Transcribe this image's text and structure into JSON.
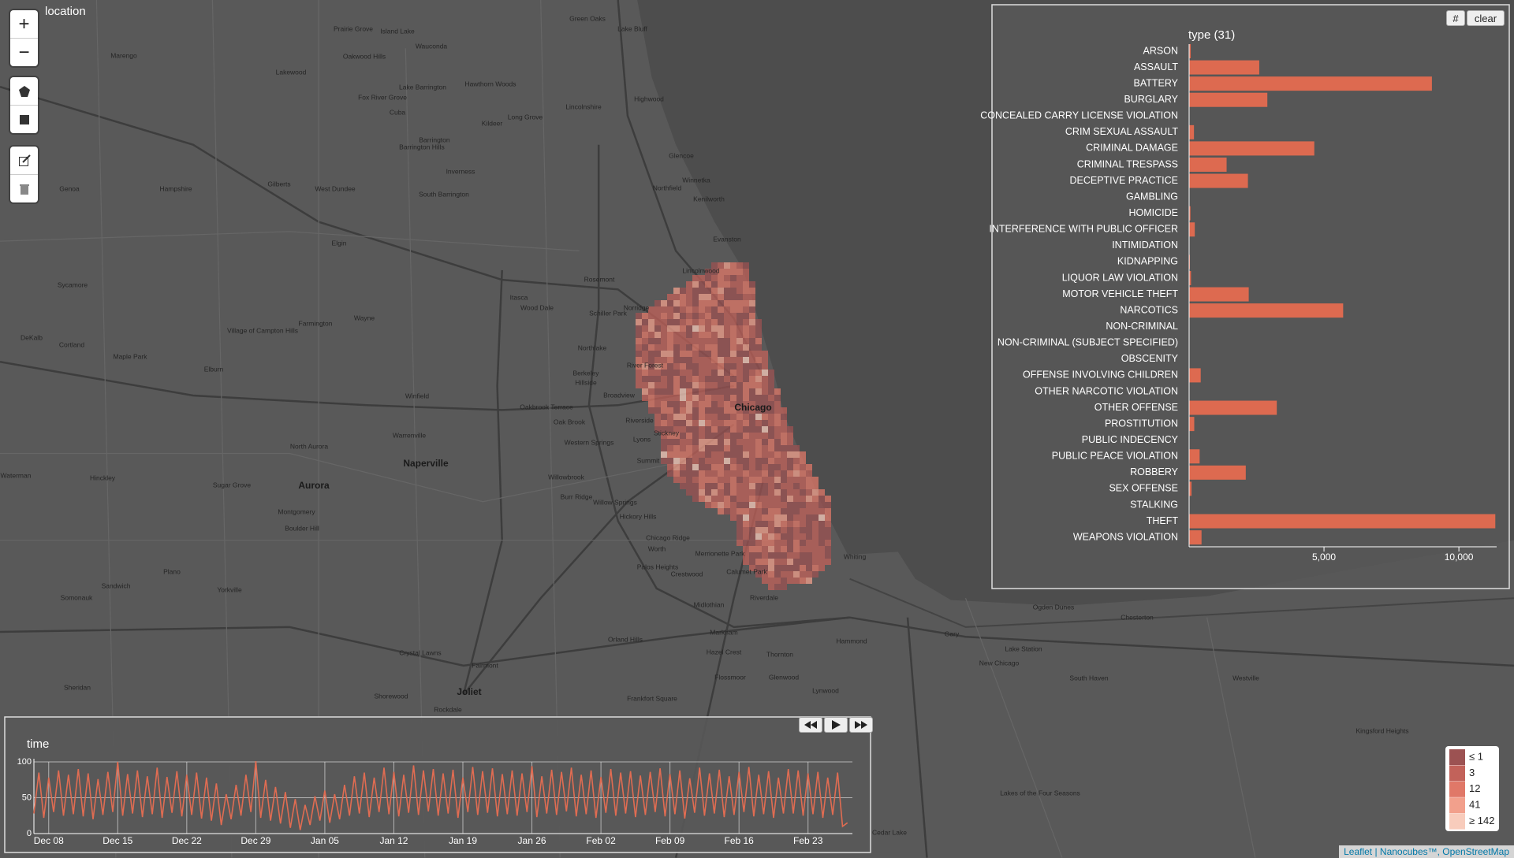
{
  "map": {
    "title": "location",
    "zoom_in": "+",
    "zoom_out": "−",
    "place_labels": [
      "Chicago",
      "Naperville",
      "Aurora",
      "Joliet",
      "Evanston",
      "Elgin",
      "Green Oaks",
      "Lake Bluff",
      "Highwood",
      "Glencoe",
      "Winnetka",
      "Northfield",
      "Kenilworth",
      "Lincolnwood",
      "Rosemont",
      "Norridge",
      "Schiller Park",
      "Wood Dale",
      "Itasca",
      "Northlake",
      "Berkeley",
      "Hillside",
      "River Forest",
      "Broadview",
      "Oakbrook Terrace",
      "Oak Brook",
      "Riverside",
      "Stickney",
      "Lyons",
      "Western Springs",
      "Summit",
      "Willowbrook",
      "Burr Ridge",
      "Willow Springs",
      "Hickory Hills",
      "Chicago Ridge",
      "Worth",
      "Merrionette Park",
      "Palos Heights",
      "Crestwood",
      "Calumet Park",
      "Riverdale",
      "Midlothian",
      "Markham",
      "Hazel Crest",
      "Thornton",
      "Flossmoor",
      "Glenwood",
      "Lynwood",
      "Hammond",
      "Whiting",
      "Gary",
      "Ogden Dunes",
      "Chesterton",
      "Lake Station",
      "New Chicago",
      "South Haven",
      "Westville",
      "Kingsford Heights",
      "Lakes of the Four Seasons",
      "Cedar Lake",
      "Orland Hills",
      "Frankfort Square",
      "Shorewood",
      "Rockdale",
      "Fairmont",
      "Crystal Lawns",
      "Plano",
      "Sandwich",
      "Yorkville",
      "Somonauk",
      "Sheridan",
      "Hinckley",
      "Waterman",
      "Sugar Grove",
      "Montgomery",
      "Boulder Hill",
      "North Aurora",
      "Warrenville",
      "Winfield",
      "Elburn",
      "Maple Park",
      "Cortland",
      "DeKalb",
      "Sycamore",
      "Village of Campton Hills",
      "Wayne",
      "Farmington",
      "Hampshire",
      "Gilberts",
      "West Dundee",
      "Genoa",
      "Marengo",
      "Lakewood",
      "Fox River Grove",
      "Cuba",
      "Barrington",
      "Barrington Hills",
      "Inverness",
      "South Barrington",
      "Lake Barrington",
      "Hawthorn Woods",
      "Kildeer",
      "Long Grove",
      "Lincolnshire",
      "Prairie Grove",
      "Island Lake",
      "Wauconda",
      "Oakwood Hills"
    ]
  },
  "type_panel": {
    "buttons": [
      "#",
      "clear"
    ],
    "chart_data": {
      "type": "bar",
      "orientation": "horizontal",
      "title": "type (31)",
      "categories": [
        "ARSON",
        "ASSAULT",
        "BATTERY",
        "BURGLARY",
        "CONCEALED CARRY LICENSE VIOLATION",
        "CRIM SEXUAL ASSAULT",
        "CRIMINAL DAMAGE",
        "CRIMINAL TRESPASS",
        "DECEPTIVE PRACTICE",
        "GAMBLING",
        "HOMICIDE",
        "INTERFERENCE WITH PUBLIC OFFICER",
        "INTIMIDATION",
        "KIDNAPPING",
        "LIQUOR LAW VIOLATION",
        "MOTOR VEHICLE THEFT",
        "NARCOTICS",
        "NON-CRIMINAL",
        "NON-CRIMINAL (SUBJECT SPECIFIED)",
        "OBSCENITY",
        "OFFENSE INVOLVING CHILDREN",
        "OTHER NARCOTIC VIOLATION",
        "OTHER OFFENSE",
        "PROSTITUTION",
        "PUBLIC INDECENCY",
        "PUBLIC PEACE VIOLATION",
        "ROBBERY",
        "SEX OFFENSE",
        "STALKING",
        "THEFT",
        "WEAPONS VIOLATION"
      ],
      "values": [
        60,
        2600,
        9000,
        2900,
        10,
        180,
        4640,
        1390,
        2180,
        10,
        50,
        210,
        15,
        30,
        70,
        2210,
        5710,
        5,
        1,
        10,
        430,
        5,
        3250,
        190,
        3,
        390,
        2100,
        90,
        15,
        11350,
        460
      ],
      "color": "#dd6a50",
      "xlim": [
        0,
        11400
      ],
      "xticks": [
        {
          "value": 5000,
          "label": "5,000"
        },
        {
          "value": 10000,
          "label": "10,000"
        }
      ]
    }
  },
  "time_panel": {
    "chart_data": {
      "type": "line",
      "title": "time",
      "color": "#e06c52",
      "values": [
        28,
        85,
        22,
        78,
        30,
        88,
        25,
        82,
        27,
        90,
        24,
        84,
        20,
        76,
        26,
        86,
        30,
        100,
        25,
        83,
        28,
        88,
        23,
        80,
        27,
        92,
        22,
        79,
        29,
        87,
        24,
        82,
        26,
        85,
        21,
        78,
        18,
        70,
        12,
        55,
        20,
        68,
        25,
        82,
        30,
        101,
        22,
        75,
        18,
        65,
        14,
        58,
        8,
        48,
        5,
        40,
        12,
        52,
        18,
        60,
        15,
        55,
        20,
        68,
        25,
        80,
        28,
        85,
        23,
        78,
        30,
        92,
        27,
        86,
        24,
        82,
        29,
        95,
        26,
        88,
        31,
        90,
        25,
        84,
        28,
        89,
        22,
        78,
        30,
        93,
        26,
        87,
        29,
        91,
        24,
        83,
        27,
        88,
        25,
        84,
        30,
        94,
        23,
        80,
        28,
        89,
        26,
        86,
        31,
        92,
        24,
        82,
        27,
        88,
        22,
        79,
        29,
        90,
        25,
        85,
        28,
        87,
        23,
        81,
        26,
        86,
        30,
        91,
        24,
        83,
        27,
        88,
        21,
        77,
        29,
        92,
        25,
        84,
        28,
        89,
        23,
        80,
        26,
        86,
        30,
        93,
        24,
        82,
        27,
        87,
        22,
        78,
        28,
        90,
        28,
        88,
        25,
        84,
        27,
        86,
        22,
        78,
        26,
        85,
        10,
        15
      ],
      "xlim": [
        0,
        166
      ],
      "ylim": [
        0,
        100
      ],
      "yticks": [
        0,
        50,
        100
      ],
      "grid": true,
      "xticks": [
        {
          "value": 3,
          "label": "Dec 08"
        },
        {
          "value": 17,
          "label": "Dec 15"
        },
        {
          "value": 31,
          "label": "Dec 22"
        },
        {
          "value": 45,
          "label": "Dec 29"
        },
        {
          "value": 59,
          "label": "Jan 05"
        },
        {
          "value": 73,
          "label": "Jan 12"
        },
        {
          "value": 87,
          "label": "Jan 19"
        },
        {
          "value": 101,
          "label": "Jan 26"
        },
        {
          "value": 115,
          "label": "Feb 02"
        },
        {
          "value": 129,
          "label": "Feb 09"
        },
        {
          "value": 143,
          "label": "Feb 16"
        },
        {
          "value": 157,
          "label": "Feb 23"
        }
      ]
    }
  },
  "legend": {
    "items": [
      {
        "label": "≤ 1",
        "color": "#9c5252"
      },
      {
        "label": "3",
        "color": "#c2625a"
      },
      {
        "label": "12",
        "color": "#e07868"
      },
      {
        "label": "41",
        "color": "#f2a08c"
      },
      {
        "label": "≥ 142",
        "color": "#f8ccbc"
      }
    ]
  },
  "attribution": "Leaflet | Nanocubes™, OpenStreetMap"
}
